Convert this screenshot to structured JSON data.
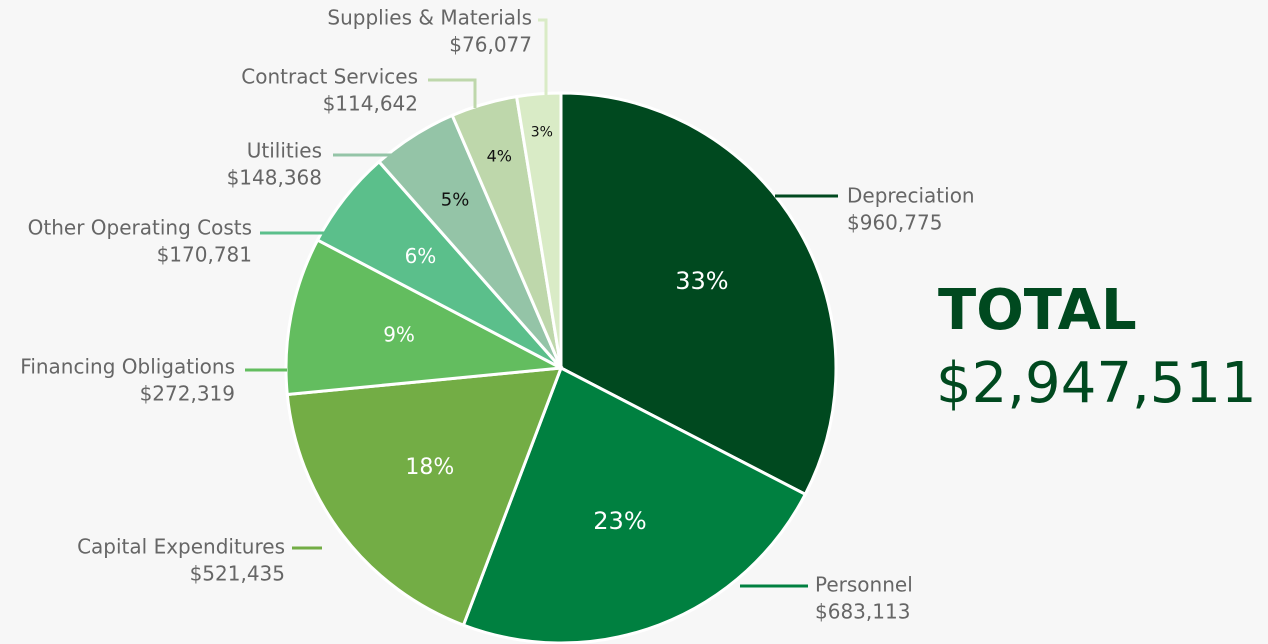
{
  "chart_data": {
    "type": "pie",
    "categories": [
      "Depreciation",
      "Personnel",
      "Capital Expenditures",
      "Financing Obligations",
      "Other Operating Costs",
      "Utilities",
      "Contract Services",
      "Supplies & Materials"
    ],
    "values": [
      960775,
      683113,
      521435,
      272319,
      170781,
      148368,
      114642,
      76077
    ],
    "value_labels": [
      "$960,775",
      "$683,113",
      "$521,435",
      "$272,319",
      "$170,781",
      "$148,368",
      "$114,642",
      "$76,077"
    ],
    "percent_labels": [
      "33%",
      "23%",
      "18%",
      "9%",
      "6%",
      "5%",
      "4%",
      "3%"
    ],
    "colors": [
      "#00491f",
      "#008040",
      "#73ad45",
      "#63bd5f",
      "#5bbf8b",
      "#94c4a7",
      "#bed7ab",
      "#d9ebc6"
    ],
    "total_title": "TOTAL",
    "total": "$2,947,511"
  }
}
